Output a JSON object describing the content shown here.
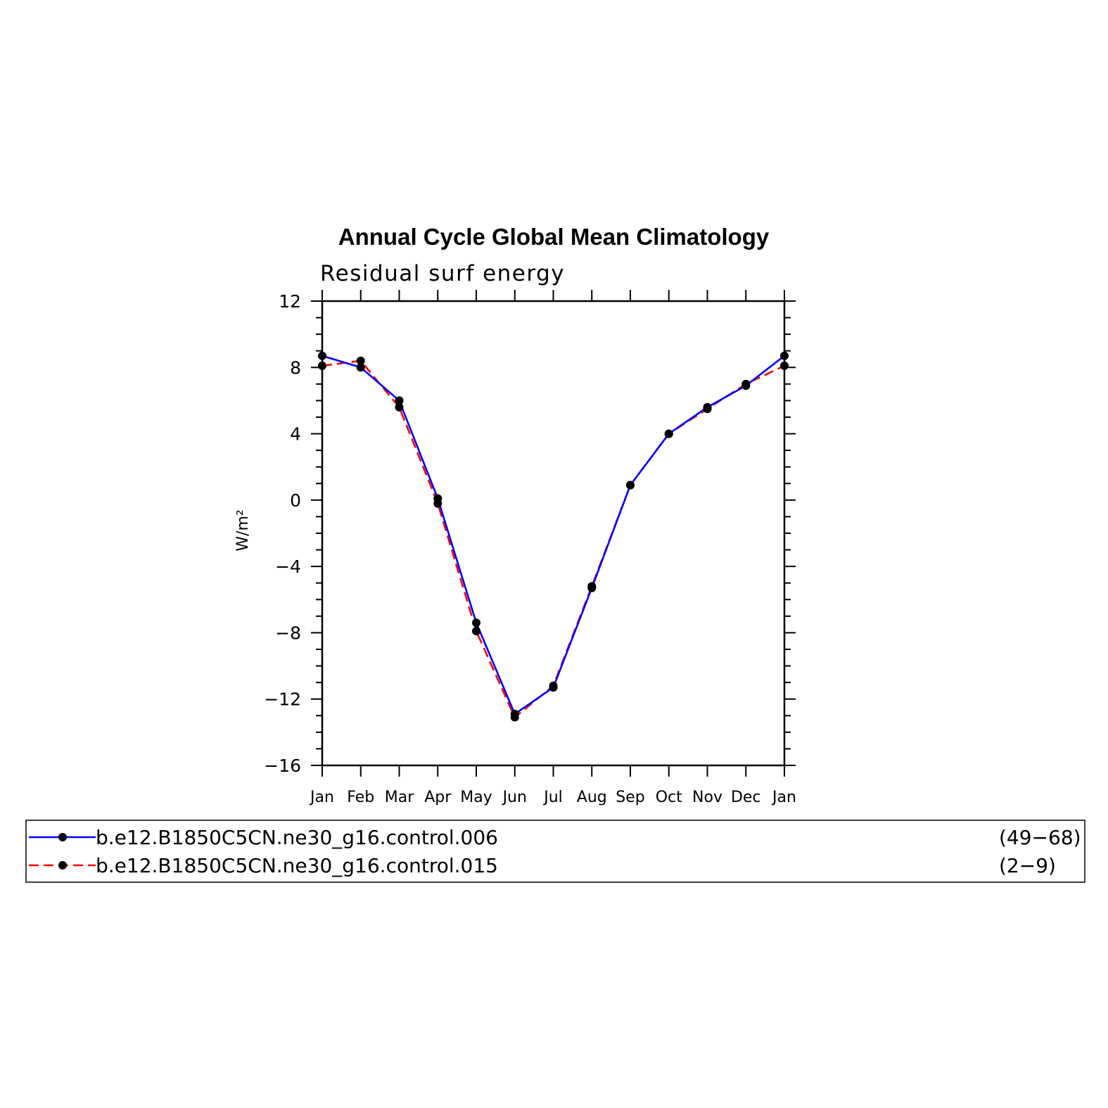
{
  "chart_data": {
    "type": "line",
    "title": "Annual Cycle Global Mean Climatology",
    "subtitle": "Residual surf energy",
    "ylabel": "W/m²",
    "xlabel": "",
    "categories": [
      "Jan",
      "Feb",
      "Mar",
      "Apr",
      "May",
      "Jun",
      "Jul",
      "Aug",
      "Sep",
      "Oct",
      "Nov",
      "Dec",
      "Jan"
    ],
    "ylim": [
      -16,
      12
    ],
    "yticks": [
      12,
      8,
      4,
      0,
      -4,
      -8,
      -12,
      -16
    ],
    "ytick_labels": [
      "12",
      "8",
      "4",
      "0",
      "−4",
      "−8",
      "−12",
      "−16"
    ],
    "series": [
      {
        "name": "b.e12.B1850C5CN.ne30_g16.control.006",
        "years": "(49−68)",
        "color": "#0000ff",
        "dash": "solid",
        "values": [
          8.7,
          8.0,
          6.0,
          0.1,
          -7.4,
          -12.9,
          -11.3,
          -5.3,
          0.9,
          4.0,
          5.6,
          6.9,
          8.7
        ]
      },
      {
        "name": "b.e12.B1850C5CN.ne30_g16.control.015",
        "years": "(2−9)",
        "color": "#ff0000",
        "dash": "dashed",
        "values": [
          8.1,
          8.4,
          5.6,
          -0.2,
          -7.9,
          -13.1,
          -11.2,
          -5.2,
          0.9,
          4.0,
          5.5,
          7.0,
          8.1
        ]
      }
    ],
    "legend_position": "bottom",
    "marker": "filled-circle",
    "marker_color": "#000000"
  }
}
